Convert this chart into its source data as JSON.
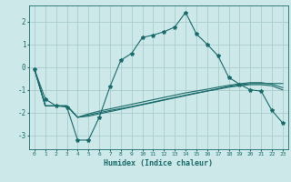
{
  "xlabel": "Humidex (Indice chaleur)",
  "bg_color": "#cce8e8",
  "grid_color": "#aacccc",
  "line_color": "#1a6b6b",
  "xlim": [
    -0.5,
    23.5
  ],
  "ylim": [
    -3.6,
    2.7
  ],
  "xticks": [
    0,
    1,
    2,
    3,
    4,
    5,
    6,
    7,
    8,
    9,
    10,
    11,
    12,
    13,
    14,
    15,
    16,
    17,
    18,
    19,
    20,
    21,
    22,
    23
  ],
  "yticks": [
    -3,
    -2,
    -1,
    0,
    1,
    2
  ],
  "line1_x": [
    0,
    1,
    2,
    3,
    4,
    5,
    6,
    7,
    8,
    9,
    10,
    11,
    12,
    13,
    14,
    15,
    16,
    17,
    18,
    19,
    20,
    21,
    22,
    23
  ],
  "line1_y": [
    -0.1,
    -1.4,
    -1.7,
    -1.75,
    -3.2,
    -3.2,
    -2.2,
    -0.85,
    0.3,
    0.6,
    1.3,
    1.4,
    1.55,
    1.75,
    2.4,
    1.45,
    1.0,
    0.5,
    -0.45,
    -0.75,
    -1.0,
    -1.05,
    -1.9,
    -2.45
  ],
  "line2_x": [
    0,
    1,
    2,
    3,
    4,
    5,
    6,
    7,
    8,
    9,
    10,
    11,
    12,
    13,
    14,
    15,
    16,
    17,
    18,
    19,
    20,
    21,
    22,
    23
  ],
  "line2_y": [
    -0.1,
    -1.7,
    -1.7,
    -1.7,
    -2.2,
    -2.15,
    -2.05,
    -1.95,
    -1.85,
    -1.75,
    -1.65,
    -1.55,
    -1.45,
    -1.35,
    -1.25,
    -1.15,
    -1.05,
    -0.95,
    -0.85,
    -0.78,
    -0.72,
    -0.72,
    -0.72,
    -0.72
  ],
  "line3_x": [
    0,
    1,
    2,
    3,
    4,
    5,
    6,
    7,
    8,
    9,
    10,
    11,
    12,
    13,
    14,
    15,
    16,
    17,
    18,
    19,
    20,
    21,
    22,
    23
  ],
  "line3_y": [
    -0.1,
    -1.7,
    -1.7,
    -1.7,
    -2.2,
    -2.1,
    -2.0,
    -1.9,
    -1.82,
    -1.73,
    -1.63,
    -1.53,
    -1.43,
    -1.33,
    -1.23,
    -1.13,
    -1.05,
    -0.97,
    -0.88,
    -0.82,
    -0.77,
    -0.77,
    -0.82,
    -1.0
  ],
  "line4_x": [
    0,
    1,
    2,
    3,
    4,
    5,
    6,
    7,
    8,
    9,
    10,
    11,
    12,
    13,
    14,
    15,
    16,
    17,
    18,
    19,
    20,
    21,
    22,
    23
  ],
  "line4_y": [
    -0.1,
    -1.7,
    -1.7,
    -1.7,
    -2.2,
    -2.05,
    -1.93,
    -1.83,
    -1.73,
    -1.63,
    -1.53,
    -1.43,
    -1.33,
    -1.23,
    -1.13,
    -1.05,
    -0.97,
    -0.88,
    -0.8,
    -0.73,
    -0.68,
    -0.68,
    -0.75,
    -0.9
  ]
}
